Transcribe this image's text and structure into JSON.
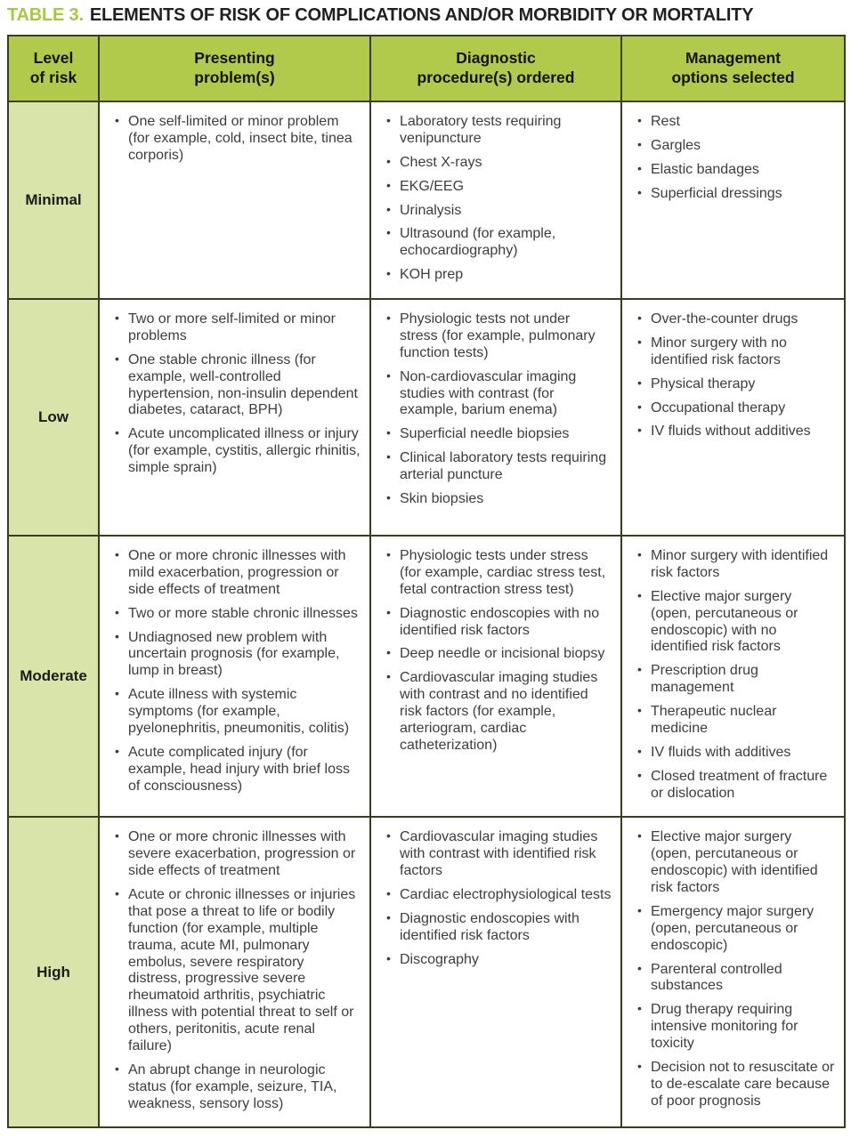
{
  "title": {
    "label": "TABLE 3.",
    "text": "ELEMENTS OF RISK OF COMPLICATIONS AND/OR MORBIDITY OR MORTALITY"
  },
  "colors": {
    "header_green": "#b2ca4c",
    "level_column_green": "#d9e4aa",
    "title_accent_green": "#a8c83f",
    "border_dark_olive": "#383c20",
    "body_text": "#3d3d3d"
  },
  "table": {
    "bullet_glyph": "•",
    "headers": [
      "Level\nof risk",
      "Presenting\nproblem(s)",
      "Diagnostic\nprocedure(s) ordered",
      "Management\noptions selected"
    ],
    "rows": [
      {
        "level": "Minimal",
        "presenting": [
          "One self-limited or minor problem (for example, cold, insect bite, tinea corporis)"
        ],
        "diagnostic": [
          "Laboratory tests requiring venipuncture",
          "Chest X-rays",
          "EKG/EEG",
          "Urinalysis",
          "Ultrasound (for example, echocardiography)",
          "KOH prep"
        ],
        "management": [
          "Rest",
          "Gargles",
          "Elastic bandages",
          "Superficial dressings"
        ]
      },
      {
        "level": "Low",
        "presenting": [
          "Two or more self-limited or minor problems",
          "One stable chronic illness (for example, well-controlled hypertension, non-insulin dependent diabetes, cataract, BPH)",
          "Acute uncomplicated illness or injury (for example, cystitis, allergic rhinitis, simple sprain)"
        ],
        "diagnostic": [
          "Physiologic tests not under stress (for example, pulmonary function tests)",
          "Non-cardiovascular imaging studies with contrast (for example, barium enema)",
          "Superficial needle biopsies",
          "Clinical laboratory tests requiring arterial puncture",
          "Skin biopsies"
        ],
        "management": [
          "Over-the-counter drugs",
          "Minor surgery with no identified risk factors",
          "Physical therapy",
          "Occupational therapy",
          "IV fluids without additives"
        ]
      },
      {
        "level": "Moderate",
        "presenting": [
          "One or more chronic illnesses with mild exacerbation, progression or side effects of treatment",
          "Two or more stable chronic illnesses",
          "Undiagnosed new problem with uncertain prognosis (for example, lump in breast)",
          "Acute illness with systemic symptoms (for example, pyelonephritis, pneumonitis, colitis)",
          "Acute complicated injury (for example, head injury with brief loss of consciousness)"
        ],
        "diagnostic": [
          "Physiologic tests under stress (for example, cardiac stress test, fetal contraction stress test)",
          "Diagnostic endoscopies with no identified risk factors",
          "Deep needle or incisional biopsy",
          "Cardiovascular imaging studies with contrast and no identified risk factors (for example, arteriogram, cardiac catheterization)"
        ],
        "management": [
          "Minor surgery with identified risk factors",
          "Elective major surgery (open, percutaneous or endoscopic) with no identified risk factors",
          "Prescription drug management",
          "Therapeutic nuclear medicine",
          "IV fluids with additives",
          "Closed treatment of fracture or dislocation"
        ]
      },
      {
        "level": "High",
        "presenting": [
          "One or more chronic illnesses with severe exacerbation, progression or side effects of treatment",
          "Acute or chronic illnesses or injuries that pose a threat to life or bodily function (for example, multiple trauma, acute MI, pulmonary embolus, severe respiratory distress, progressive severe rheumatoid arthritis, psychiatric illness with potential threat to self or others, peritonitis, acute renal failure)",
          "An abrupt change in neurologic status (for example, seizure, TIA, weakness, sensory loss)"
        ],
        "diagnostic": [
          "Cardiovascular imaging studies with contrast with identified risk factors",
          "Cardiac electrophysiological tests",
          "Diagnostic endoscopies with identified risk factors",
          "Discography"
        ],
        "management": [
          "Elective major surgery (open, percutaneous or endoscopic) with identified risk factors",
          "Emergency major surgery (open, percutaneous or endoscopic)",
          "Parenteral controlled substances",
          "Drug therapy requiring intensive monitoring for toxicity",
          "Decision not to resuscitate or to de-escalate care because of poor prognosis"
        ]
      }
    ]
  }
}
